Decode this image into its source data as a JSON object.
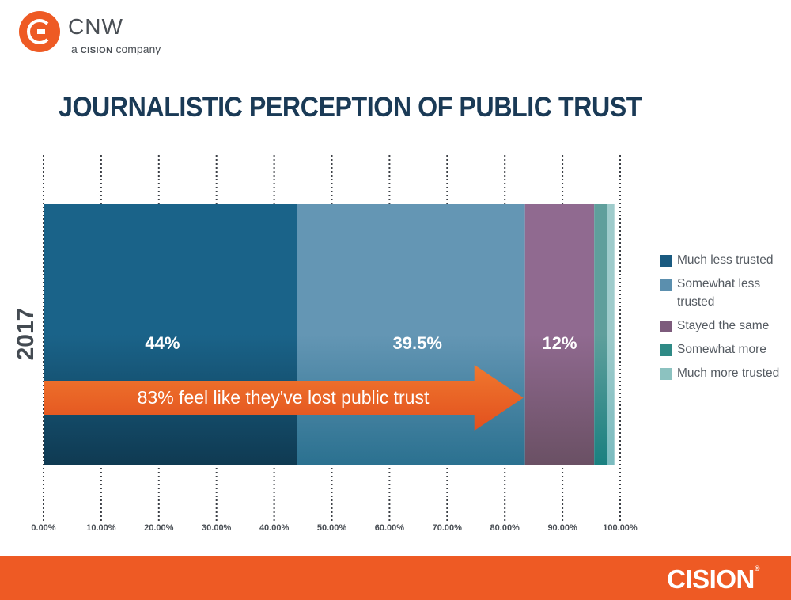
{
  "brand": {
    "logo_name": "CNW",
    "logo_tag_prefix": "a",
    "logo_tag_brand": "CISION",
    "logo_tag_suffix": "company",
    "footer": "CISION",
    "footer_mark": "®",
    "accent": "#ee5a24"
  },
  "chart_data": {
    "type": "bar",
    "orientation": "horizontal-stacked",
    "title": "JOURNALISTIC PERCEPTION OF PUBLIC TRUST",
    "categories": [
      "2017"
    ],
    "xlim": [
      0,
      100
    ],
    "ticks": [
      "0.00%",
      "10.00%",
      "20.00%",
      "30.00%",
      "40.00%",
      "50.00%",
      "60.00%",
      "70.00%",
      "80.00%",
      "90.00%",
      "100.00%"
    ],
    "series": [
      {
        "name": "Much less trusted",
        "values": [
          44
        ],
        "label": "44%",
        "color": "#1a6389",
        "color_dark": "#0f3a52"
      },
      {
        "name": "Somewhat less trusted",
        "values": [
          39.5
        ],
        "label": "39.5%",
        "color": "#6496b4",
        "color_dark": "#2b7190"
      },
      {
        "name": "Stayed the same",
        "values": [
          12
        ],
        "label": "12%",
        "color": "#906a90",
        "color_dark": "#6a5064"
      },
      {
        "name": "Somewhat more",
        "values": [
          2.3
        ],
        "label": "",
        "color": "#5f9f9c",
        "color_dark": "#1a8080"
      },
      {
        "name": "Much more trusted",
        "values": [
          1.2
        ],
        "label": "",
        "color": "#9fcccc",
        "color_dark": "#7bbcc0"
      }
    ],
    "annotation": "83% feel like they've lost public trust",
    "annotation_color": "#ee5a24",
    "grid": "dotted"
  },
  "legend": {
    "items": [
      {
        "label": "Much less trusted",
        "color": "#1a5a80"
      },
      {
        "label": "Somewhat less trusted",
        "color": "#5b8fae"
      },
      {
        "label": "Stayed the same",
        "color": "#7d5b7c"
      },
      {
        "label": "Somewhat more",
        "color": "#2f8a86"
      },
      {
        "label": "Much more trusted",
        "color": "#8cc2c0"
      }
    ]
  }
}
